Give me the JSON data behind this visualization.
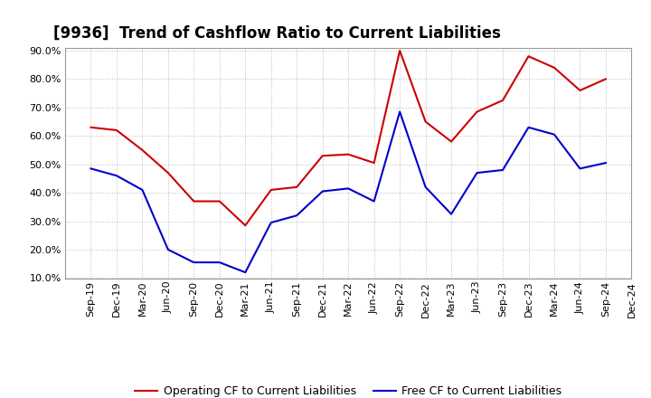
{
  "title": "[9936]  Trend of Cashflow Ratio to Current Liabilities",
  "x_labels": [
    "Sep-19",
    "Dec-19",
    "Mar-20",
    "Jun-20",
    "Sep-20",
    "Dec-20",
    "Mar-21",
    "Jun-21",
    "Sep-21",
    "Dec-21",
    "Mar-22",
    "Jun-22",
    "Sep-22",
    "Dec-22",
    "Mar-23",
    "Jun-23",
    "Sep-23",
    "Dec-23",
    "Mar-24",
    "Jun-24",
    "Sep-24",
    "Dec-24"
  ],
  "operating_cf": [
    0.63,
    0.62,
    0.55,
    0.47,
    0.37,
    0.37,
    0.285,
    0.41,
    0.42,
    0.53,
    0.535,
    0.505,
    0.9,
    0.65,
    0.58,
    0.685,
    0.725,
    0.88,
    0.84,
    0.76,
    0.8,
    null
  ],
  "free_cf": [
    0.485,
    0.46,
    0.41,
    0.2,
    0.155,
    0.155,
    0.12,
    0.295,
    0.32,
    0.405,
    0.415,
    0.37,
    0.685,
    0.42,
    0.325,
    0.47,
    0.48,
    0.63,
    0.605,
    0.485,
    0.505,
    null
  ],
  "operating_cf_color": "#cc0000",
  "free_cf_color": "#0000cc",
  "background_color": "#ffffff",
  "plot_bg_color": "#ffffff",
  "grid_color": "#bbbbbb",
  "ylim_min": 0.1,
  "ylim_max": 0.9,
  "yticks": [
    0.1,
    0.2,
    0.3,
    0.4,
    0.5,
    0.6,
    0.7,
    0.8,
    0.9
  ],
  "title_fontsize": 12,
  "tick_fontsize": 8,
  "legend_op_label": "Operating CF to Current Liabilities",
  "legend_free_label": "Free CF to Current Liabilities",
  "legend_fontsize": 9
}
